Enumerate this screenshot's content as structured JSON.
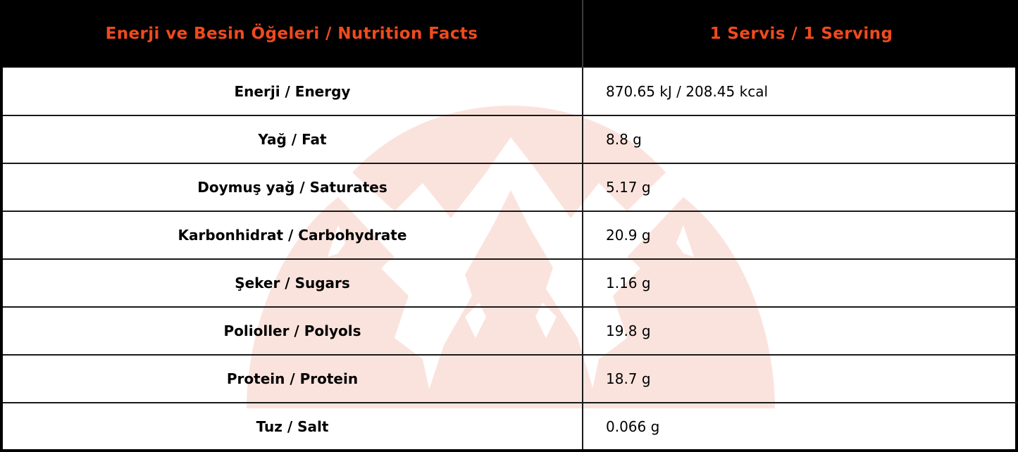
{
  "header": {
    "left": "Enerji ve Besin Öğeleri / Nutrition Facts",
    "right": "1 Servis / 1 Serving"
  },
  "rows": [
    {
      "label": "Enerji / Energy",
      "value": "870.65 kJ / 208.45 kcal"
    },
    {
      "label": "Yağ / Fat",
      "value": "8.8 g"
    },
    {
      "label": "Doymuş yağ / Saturates",
      "value": "5.17 g"
    },
    {
      "label": "Karbonhidrat / Carbohydrate",
      "value": "20.9 g"
    },
    {
      "label": "Şeker / Sugars",
      "value": "1.16 g"
    },
    {
      "label": "Polioller / Polyols",
      "value": "19.8 g"
    },
    {
      "label": "Protein / Protein",
      "value": "18.7 g"
    },
    {
      "label": "Tuz / Salt",
      "value": "0.066 g"
    }
  ],
  "colors": {
    "header_bg": "#000000",
    "header_text": "#f04a1d",
    "watermark": "#fbe3dd"
  },
  "watermark_icon": "mountain-logo-icon"
}
